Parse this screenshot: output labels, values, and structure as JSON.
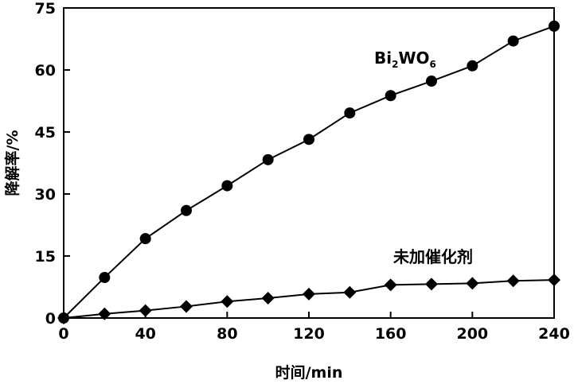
{
  "chart_data": {
    "type": "line",
    "xlabel": "时间/min",
    "ylabel": "降解率/%",
    "xlim": [
      0,
      240
    ],
    "ylim": [
      0,
      75
    ],
    "xticks": [
      0,
      40,
      80,
      120,
      160,
      200,
      240
    ],
    "yticks": [
      0,
      15,
      30,
      45,
      60,
      75
    ],
    "grid": false,
    "series": [
      {
        "name": "Bi2WO6",
        "label_main": "Bi",
        "label_sub1": "2",
        "label_mid": "WO",
        "label_sub2": "6",
        "marker": "circle",
        "x": [
          0,
          20,
          40,
          60,
          80,
          100,
          120,
          140,
          160,
          180,
          200,
          220,
          240
        ],
        "y": [
          0,
          9.8,
          19.2,
          26,
          32,
          38.3,
          43.2,
          49.6,
          53.8,
          57.3,
          61,
          67,
          70.6
        ]
      },
      {
        "name": "未加催化剂",
        "marker": "diamond",
        "x": [
          0,
          20,
          40,
          60,
          80,
          100,
          120,
          140,
          160,
          180,
          200,
          220,
          240
        ],
        "y": [
          0,
          1,
          1.8,
          2.8,
          4,
          4.8,
          5.8,
          6.2,
          8,
          8.2,
          8.4,
          9,
          9.2
        ]
      }
    ]
  }
}
